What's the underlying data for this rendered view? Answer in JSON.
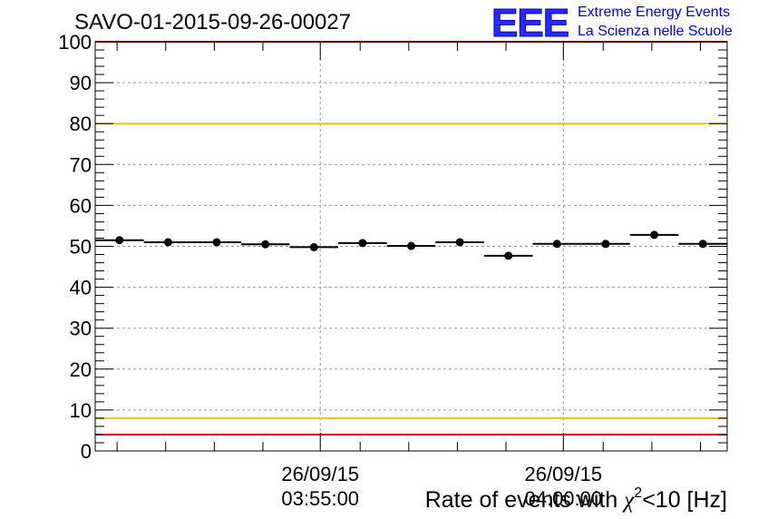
{
  "chart_data": {
    "type": "scatter",
    "title": "SAVO-01-2015-09-26-00027",
    "xlabel": "Rate of events with χ²<10 [Hz]",
    "xlabel_prefix": "Rate of events with ",
    "xlabel_chi": "χ",
    "xlabel_sup": "2",
    "xlabel_suffix": "<10 [Hz]",
    "ylabel": "",
    "ylim": [
      0,
      100
    ],
    "yticks": [
      0,
      10,
      20,
      30,
      40,
      50,
      60,
      70,
      80,
      90,
      100
    ],
    "xlim": [
      0,
      13
    ],
    "grid": true,
    "x_time_labels": [
      {
        "x": 4.63,
        "date": "26/09/15",
        "time": "03:55:00"
      },
      {
        "x": 9.63,
        "date": "26/09/15",
        "time": "04:00:00"
      }
    ],
    "x_minor_ticks": [
      0.45,
      1.45,
      2.45,
      3.45,
      5.45,
      6.45,
      7.45,
      8.45,
      10.45,
      11.45,
      12.45
    ],
    "points": [
      {
        "x": 0.5,
        "y": 51.5,
        "xerr": 0.5
      },
      {
        "x": 1.5,
        "y": 51.0,
        "xerr": 0.5
      },
      {
        "x": 2.5,
        "y": 51.0,
        "xerr": 0.5
      },
      {
        "x": 3.5,
        "y": 50.5,
        "xerr": 0.5
      },
      {
        "x": 4.5,
        "y": 49.8,
        "xerr": 0.5
      },
      {
        "x": 5.5,
        "y": 50.8,
        "xerr": 0.5
      },
      {
        "x": 6.5,
        "y": 50.1,
        "xerr": 0.5
      },
      {
        "x": 7.5,
        "y": 51.0,
        "xerr": 0.5
      },
      {
        "x": 8.5,
        "y": 47.7,
        "xerr": 0.5
      },
      {
        "x": 9.5,
        "y": 50.6,
        "xerr": 0.5
      },
      {
        "x": 10.5,
        "y": 50.6,
        "xerr": 0.5
      },
      {
        "x": 11.5,
        "y": 52.8,
        "xerr": 0.5
      },
      {
        "x": 12.5,
        "y": 50.6,
        "xerr": 0.5
      }
    ],
    "reference_lines": [
      {
        "name": "upper-red-limit",
        "y": 100,
        "color": "#ff0000"
      },
      {
        "name": "upper-yellow-limit",
        "y": 80,
        "color": "#f2c300"
      },
      {
        "name": "lower-yellow-limit",
        "y": 8,
        "color": "#f2c300"
      },
      {
        "name": "lower-red-limit",
        "y": 4,
        "color": "#ff0000"
      }
    ]
  },
  "logo": {
    "mark": "EEE",
    "line1": "Extreme Energy Events",
    "line2": "La Scienza nelle Scuole",
    "color": "#0000ee"
  }
}
